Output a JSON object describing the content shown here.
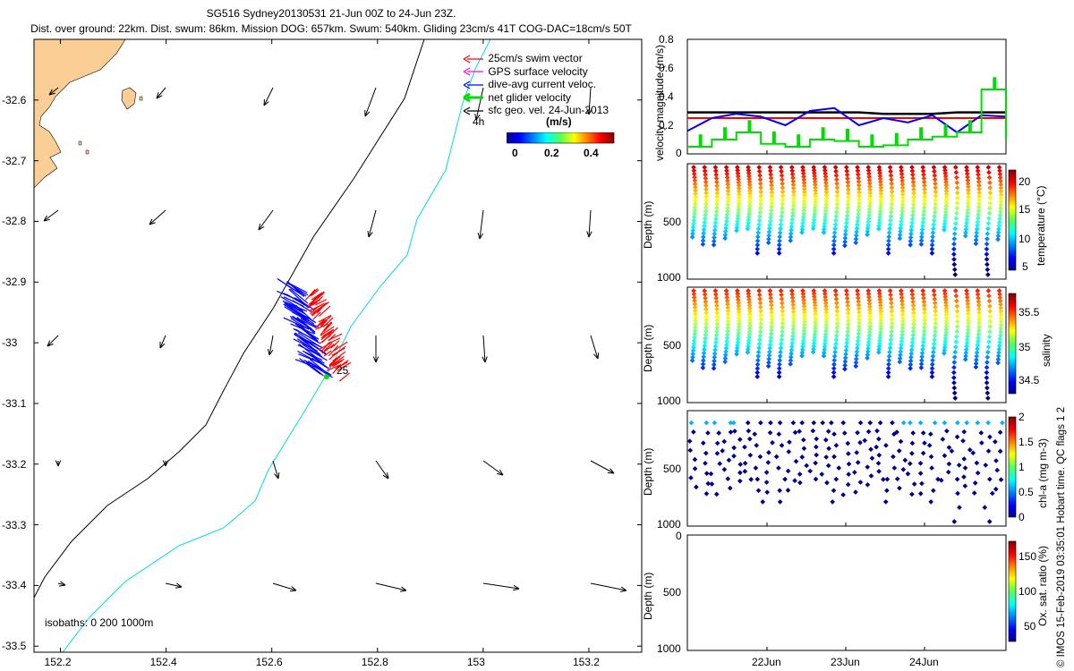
{
  "header": {
    "line1": "SG516 Sydney20130531 21-Jun 00Z to 24-Jun 23Z.",
    "line2": "Dist. over ground: 22km. Dist. swum: 86km. Mission DOG: 657km. Swum: 540km. Gliding 23cm/s 41T COG-DAC=18cm/s 50T"
  },
  "map": {
    "legend": [
      {
        "label": "25cm/s swim vector",
        "color": "#ff0000"
      },
      {
        "label": "GPS surface velocity",
        "color": "#ff00ff"
      },
      {
        "label": "dive-avg current veloc.",
        "color": "#0000ff"
      },
      {
        "label": "net glider velocity",
        "color": "#00dd00"
      },
      {
        "label": "sfc geo. vel. 24-Jun-2013",
        "color": "#000000"
      }
    ],
    "legend_extra": "4h",
    "colorbar_title": "(m/s)",
    "colorbar_ticks": [
      "0",
      "0.2",
      "0.4"
    ],
    "isobaths_note": "isobaths: 0   200  1000m",
    "position_label": "25",
    "colors": {
      "land": "#fbce96",
      "shelf_isobath": "#000000",
      "deep_isobath": "#00dddd"
    },
    "x_ticks": [
      "152.2",
      "152.4",
      "152.6",
      "152.8",
      "153",
      "153.2"
    ],
    "y_ticks": [
      "-32.6",
      "-32.7",
      "-32.8",
      "-32.9",
      "-33",
      "-33.1",
      "-33.2",
      "-33.3",
      "-33.4",
      "-33.5"
    ]
  },
  "panels": {
    "velocity": {
      "ylabel": "velocity magnitude (m/s)",
      "y_ticks": [
        "0.8",
        "0.6",
        "0.4",
        "0.2",
        "0"
      ]
    },
    "temperature": {
      "ylabel": "Depth (m)",
      "cb_label": "temperature (°C)",
      "cb_ticks": [
        "20",
        "15",
        "10",
        "5"
      ],
      "y_ticks": [
        "500",
        "1000"
      ]
    },
    "salinity": {
      "ylabel": "Depth (m)",
      "cb_label": "salinity",
      "cb_ticks": [
        "35.5",
        "35",
        "34.5"
      ],
      "y_ticks": [
        "500",
        "1000"
      ]
    },
    "chla": {
      "ylabel": "Depth (m)",
      "cb_label": "chl-a (mg m-3)",
      "cb_ticks": [
        "2",
        "1.5",
        "1",
        "0.5",
        "0"
      ],
      "y_ticks": [
        "500",
        "1000"
      ]
    },
    "oxygen": {
      "ylabel": "Depth (m)",
      "cb_label": "Ox. sat. ratio (%)",
      "cb_ticks": [
        "150",
        "100",
        "50"
      ],
      "y_ticks": [
        "0",
        "500",
        "1000"
      ]
    },
    "x_ticks": [
      "22Jun",
      "23Jun",
      "24Jun"
    ],
    "side_note": "© IMOS 15-Feb-2019 03:35:01 Hobart time. QC flags 1  2"
  },
  "chart_data": [
    {
      "type": "scatter",
      "title": "",
      "xlabel": "",
      "ylabel": "",
      "xlim": [
        152.15,
        153.3
      ],
      "ylim": [
        -33.51,
        -32.5
      ],
      "grid": false,
      "legend_position": "top-right",
      "glider_track_end": {
        "lon": 152.7,
        "lat": -33.06
      }
    },
    {
      "type": "line",
      "xlabel": "",
      "ylabel": "velocity magnitude (m/s)",
      "ylim": [
        0,
        0.8
      ],
      "series": [
        {
          "color": "#000000",
          "values": [
            0.29,
            0.29,
            0.29,
            0.29,
            0.29,
            0.29,
            0.29,
            0.29,
            0.28,
            0.28,
            0.28,
            0.29,
            0.29,
            0.29
          ]
        },
        {
          "color": "#ff0000",
          "values": [
            0.25,
            0.25,
            0.25,
            0.25,
            0.25,
            0.25,
            0.25,
            0.25,
            0.25,
            0.25,
            0.25,
            0.25,
            0.25,
            0.25
          ]
        },
        {
          "color": "#0000ff",
          "values": [
            0.16,
            0.25,
            0.28,
            0.26,
            0.2,
            0.3,
            0.32,
            0.2,
            0.25,
            0.22,
            0.27,
            0.15,
            0.27,
            0.26
          ]
        },
        {
          "color": "#00dd00",
          "values": [
            0.05,
            0.1,
            0.15,
            0.07,
            0.05,
            0.1,
            0.09,
            0.05,
            0.06,
            0.1,
            0.12,
            0.15,
            0.45,
            0.1
          ]
        }
      ]
    },
    {
      "type": "scatter",
      "ylabel": "Depth (m)",
      "ylim": [
        1000,
        0
      ],
      "colorbar": "temperature (°C)",
      "clim": [
        4,
        23
      ]
    },
    {
      "type": "scatter",
      "ylabel": "Depth (m)",
      "ylim": [
        1000,
        0
      ],
      "colorbar": "salinity",
      "clim": [
        34.3,
        35.8
      ]
    },
    {
      "type": "scatter",
      "ylabel": "Depth (m)",
      "ylim": [
        1000,
        0
      ],
      "colorbar": "chl-a (mg m-3)",
      "clim": [
        0,
        2
      ]
    },
    {
      "type": "scatter",
      "ylabel": "Depth (m)",
      "ylim": [
        1000,
        0
      ],
      "colorbar": "Ox. sat. ratio (%)",
      "clim": [
        20,
        175
      ]
    }
  ]
}
